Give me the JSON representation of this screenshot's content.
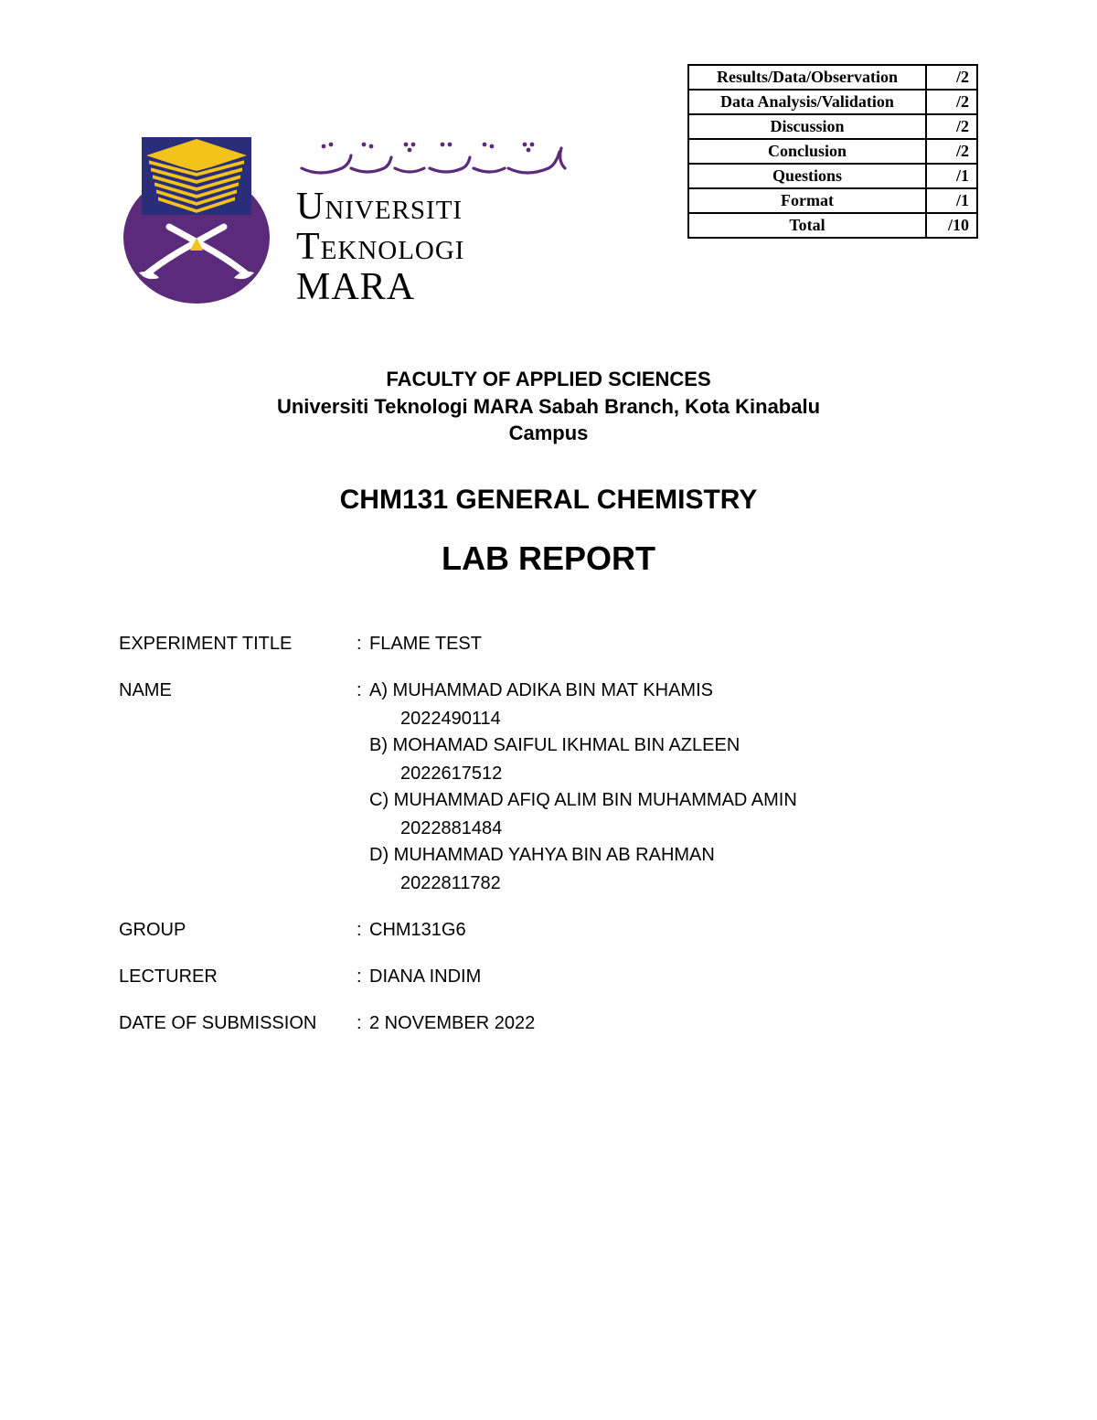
{
  "colors": {
    "bg": "#ffffff",
    "text": "#000000",
    "logo_purple": "#5b2a7a",
    "logo_blue": "#2a2e7a",
    "logo_gold": "#f3c21b",
    "logo_white": "#ffffff"
  },
  "rubric": {
    "rows": [
      {
        "label": "Results/Data/Observation",
        "score": "/2"
      },
      {
        "label": "Data Analysis/Validation",
        "score": "/2"
      },
      {
        "label": "Discussion",
        "score": "/2"
      },
      {
        "label": "Conclusion",
        "score": "/2"
      },
      {
        "label": "Questions",
        "score": "/1"
      },
      {
        "label": "Format",
        "score": "/1"
      },
      {
        "label": "Total",
        "score": "/10"
      }
    ],
    "border_color": "#000000",
    "border_width": 2,
    "font_family": "Georgia",
    "font_size": 18,
    "font_weight": "bold",
    "label_col_width": 260,
    "score_col_width": 56
  },
  "brand": {
    "uni_line1": "Universiti",
    "uni_line2": "Teknologi",
    "uni_line3": "MARA",
    "jawi_alt": "اونيۏرسيتي تيكنولوڬي مارا",
    "wordmark_font": "Georgia",
    "wordmark_fontsize": 42
  },
  "headings": {
    "faculty_l1": "FACULTY OF APPLIED SCIENCES",
    "faculty_l2": "Universiti Teknologi MARA Sabah Branch, Kota Kinabalu",
    "faculty_l3": "Campus",
    "faculty_fontsize": 22,
    "course": "CHM131 GENERAL CHEMISTRY",
    "course_fontsize": 30,
    "report": "LAB REPORT",
    "report_fontsize": 36
  },
  "details": {
    "fontsize": 20,
    "label_col_width": 260,
    "experiment_label": "EXPERIMENT TITLE",
    "experiment_value": "FLAME TEST",
    "name_label": "NAME",
    "names": [
      {
        "prefix": "A)",
        "name": "MUHAMMAD ADIKA BIN MAT KHAMIS",
        "id": "2022490114"
      },
      {
        "prefix": "B)",
        "name": "MOHAMAD SAIFUL IKHMAL BIN AZLEEN",
        "id": "2022617512"
      },
      {
        "prefix": "C)",
        "name": "MUHAMMAD AFIQ ALIM BIN MUHAMMAD AMIN",
        "id": "2022881484"
      },
      {
        "prefix": "D)",
        "name": "MUHAMMAD YAHYA BIN AB RAHMAN",
        "id": "2022811782"
      }
    ],
    "group_label": "GROUP",
    "group_value": "CHM131G6",
    "lecturer_label": "LECTURER",
    "lecturer_value": "DIANA INDIM",
    "date_label": "DATE OF SUBMISSION",
    "date_value": "2 NOVEMBER 2022"
  }
}
